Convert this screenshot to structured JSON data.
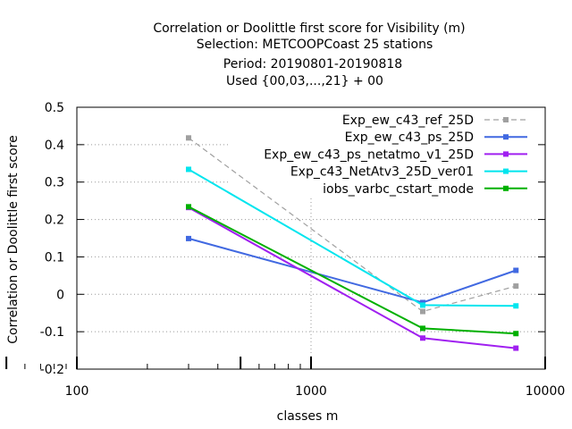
{
  "chart_data": {
    "type": "line",
    "title_lines": [
      "Correlation or Doolittle first score  for Visibility (m)",
      "Selection: METCOOPCoast     25 stations",
      "Period: 20190801-20190818",
      "Used {00,03,...,21} + 00"
    ],
    "xlabel": "classes m",
    "ylabel": "Correlation or Doolittle first score",
    "x_scale": "log",
    "xlim": [
      100,
      10000
    ],
    "ylim": [
      -0.2,
      0.5
    ],
    "x_ticks": [
      100,
      1000,
      10000
    ],
    "x_tick_labels": [
      "100",
      "1000",
      "10000"
    ],
    "y_ticks": [
      -0.2,
      -0.1,
      0,
      0.1,
      0.2,
      0.3,
      0.4,
      0.5
    ],
    "y_tick_labels": [
      "-0.2",
      "-0.1",
      "0",
      "0.1",
      "0.2",
      "0.3",
      "0.4",
      "0.5"
    ],
    "grid": "dotted, partial (hidden behind legend)",
    "legend_position": "top-right",
    "series": [
      {
        "name": "Exp_ew_c43_ref_25D",
        "color": "#a0a0a0",
        "dash": "dashed",
        "x": [
          300,
          3000,
          7500
        ],
        "y": [
          0.418,
          -0.046,
          0.022
        ]
      },
      {
        "name": "Exp_ew_c43_ps_25D",
        "color": "#4169e1",
        "dash": "solid",
        "x": [
          300,
          3000,
          7500
        ],
        "y": [
          0.149,
          -0.022,
          0.064
        ]
      },
      {
        "name": "Exp_ew_c43_ps_netatmo_v1_25D",
        "color": "#a020f0",
        "dash": "solid",
        "x": [
          300,
          3000,
          7500
        ],
        "y": [
          0.232,
          -0.117,
          -0.144
        ]
      },
      {
        "name": "Exp_c43_NetAtv3_25D_ver01",
        "color": "#00e5ee",
        "dash": "solid",
        "x": [
          300,
          3000,
          7500
        ],
        "y": [
          0.334,
          -0.029,
          -0.031
        ]
      },
      {
        "name": "iobs_varbc_cstart_mode",
        "color": "#00b000",
        "dash": "solid",
        "x": [
          300,
          3000,
          7500
        ],
        "y": [
          0.234,
          -0.091,
          -0.105
        ]
      }
    ]
  }
}
